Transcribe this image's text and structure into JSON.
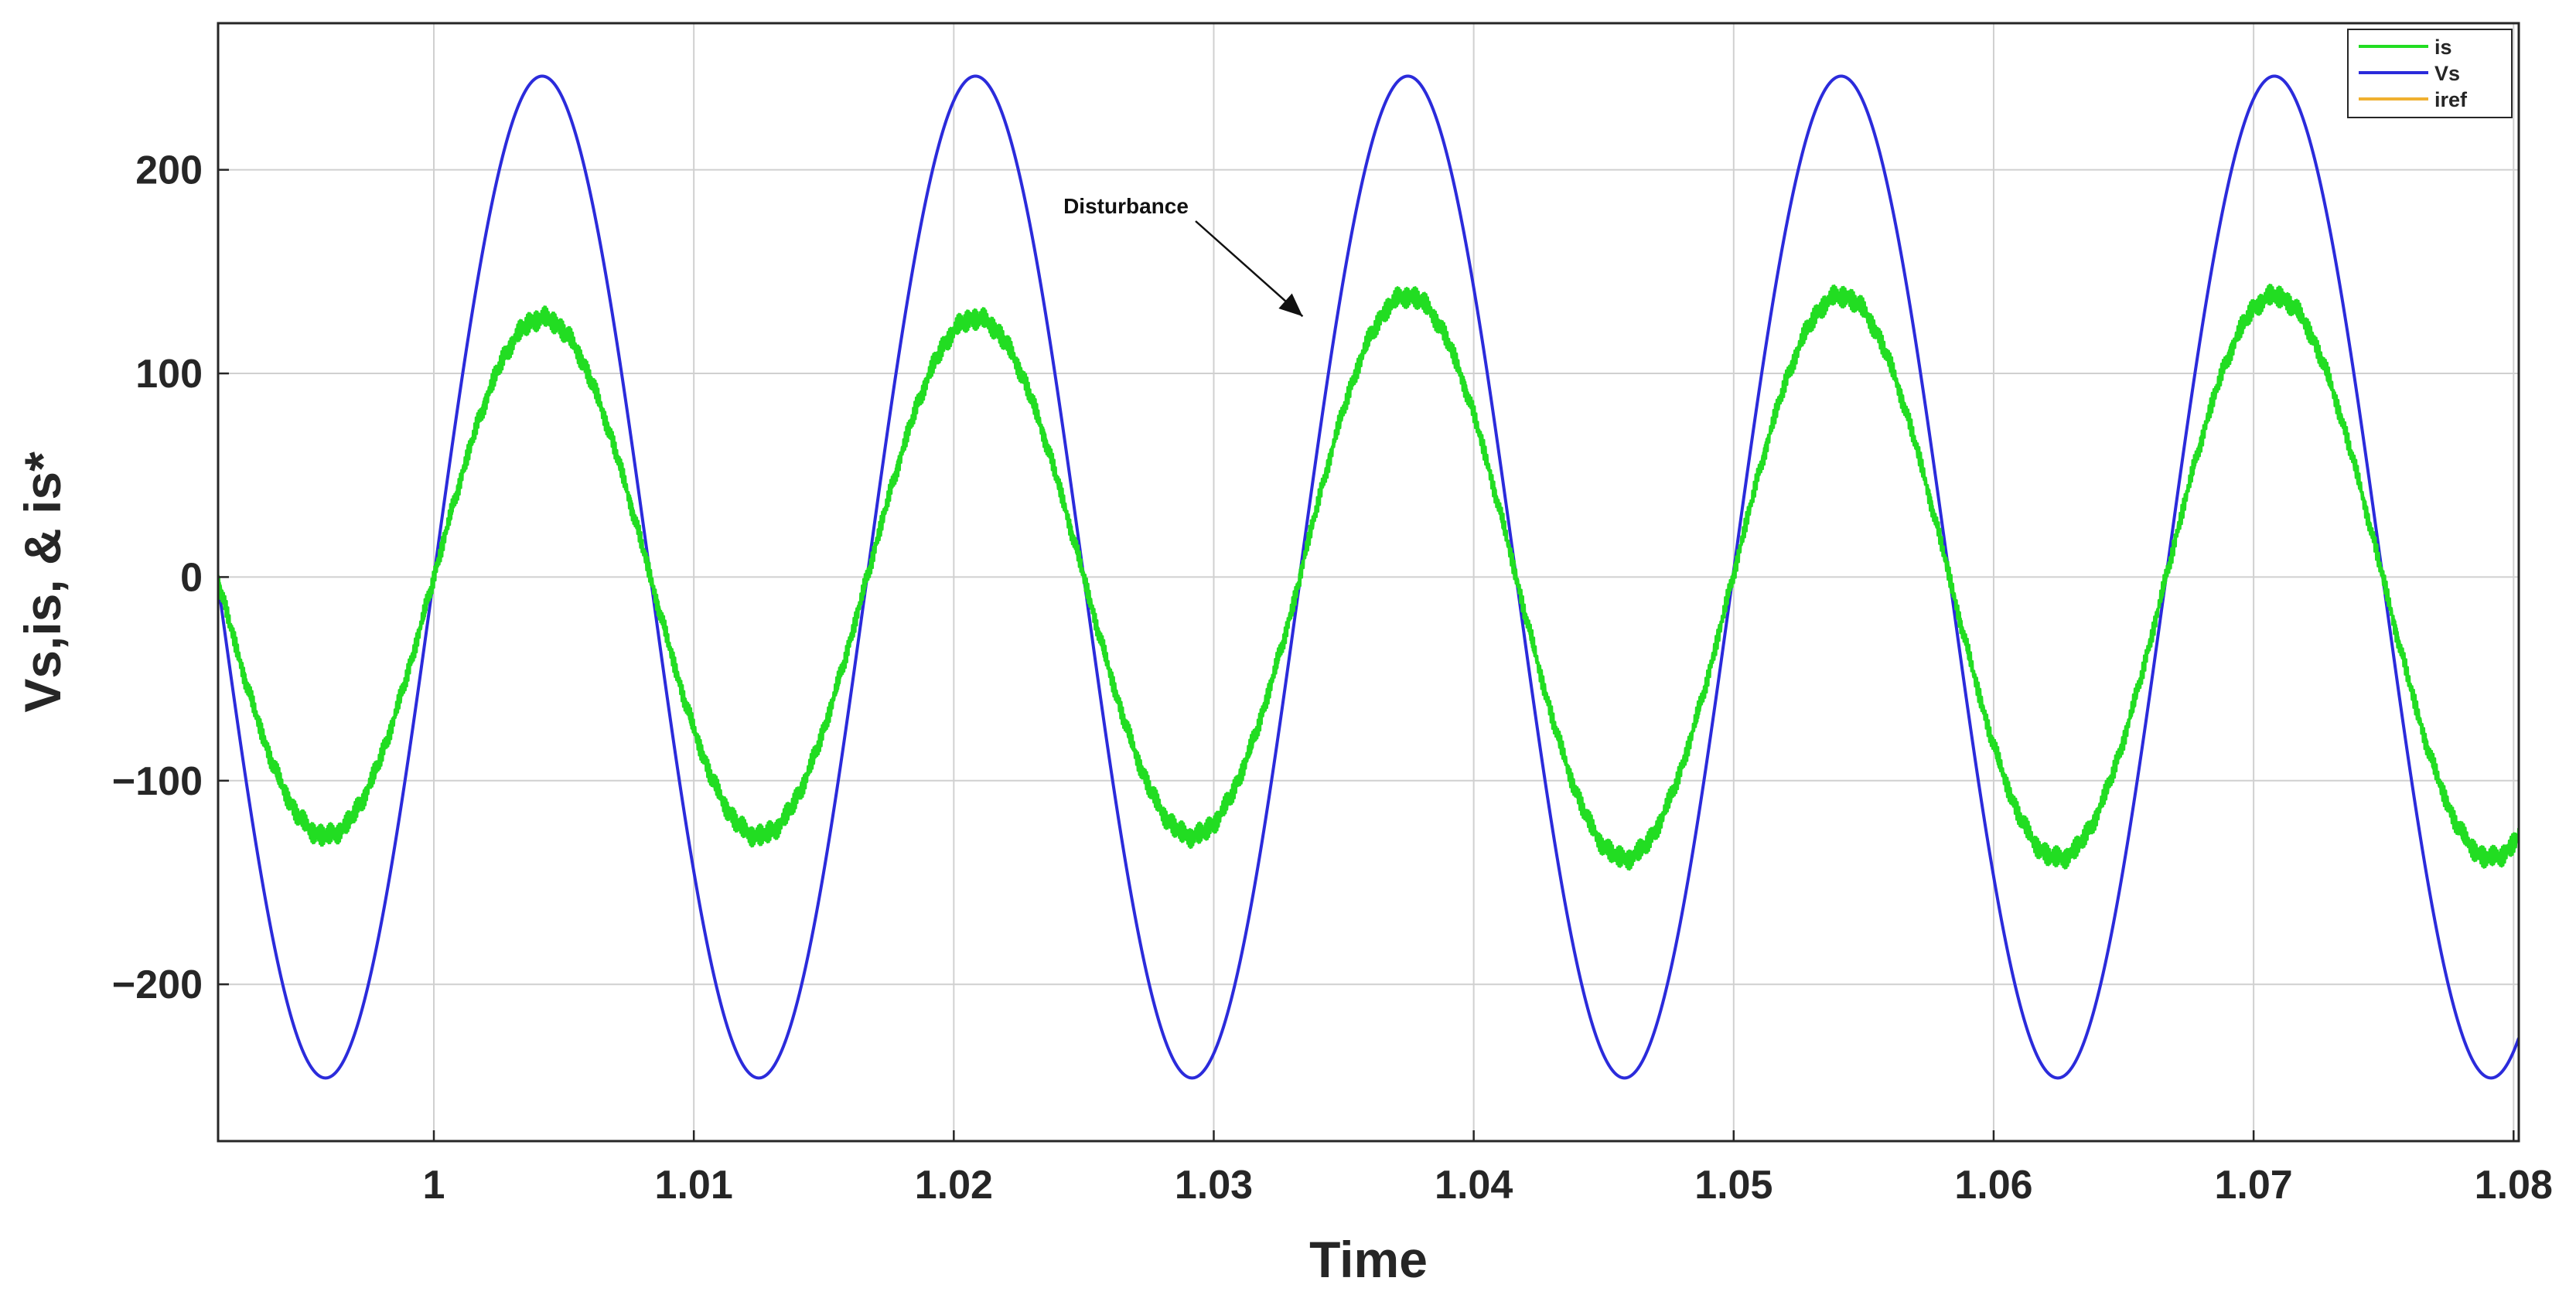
{
  "chart_data": {
    "type": "line",
    "title": "",
    "xlabel": "Time",
    "ylabel": "Vs,is, & is*",
    "xlim": [
      0.9917,
      1.0802
    ],
    "ylim": [
      -277,
      272
    ],
    "x_ticks": [
      1,
      1.01,
      1.02,
      1.03,
      1.04,
      1.05,
      1.06,
      1.07,
      1.08
    ],
    "x_tick_labels": [
      "1",
      "1.01",
      "1.02",
      "1.03",
      "1.04",
      "1.05",
      "1.06",
      "1.07",
      "1.08"
    ],
    "y_ticks": [
      -200,
      -100,
      0,
      100,
      200
    ],
    "y_tick_labels": [
      "−200",
      "−100",
      "0",
      "100",
      "200"
    ],
    "grid": true,
    "legend_position": "top-right",
    "frequency_hz": 60,
    "series": [
      {
        "name": "is",
        "color": "#22dd22",
        "waveform": "sine",
        "segments": [
          {
            "t_start": 0.9917,
            "t_end": 1.0333,
            "amplitude": 127,
            "phase_zero_time": 1.0
          },
          {
            "t_start": 1.0333,
            "t_end": 1.0802,
            "amplitude": 138,
            "phase_zero_time": 1.0333
          }
        ],
        "ripple": 6
      },
      {
        "name": "Vs",
        "color": "#2b2bdb",
        "waveform": "sine",
        "segments": [
          {
            "t_start": 0.9917,
            "t_end": 1.0333,
            "amplitude": 246,
            "phase_zero_time": 1.0
          },
          {
            "t_start": 1.0333,
            "t_end": 1.0802,
            "amplitude": 246,
            "phase_zero_time": 1.0333
          }
        ]
      },
      {
        "name": "iref",
        "color": "#f0b030",
        "waveform": "sine",
        "segments": [
          {
            "t_start": 0.9917,
            "t_end": 1.0333,
            "amplitude": 127,
            "phase_zero_time": 1.0
          },
          {
            "t_start": 1.0333,
            "t_end": 1.0802,
            "amplitude": 138,
            "phase_zero_time": 1.0333
          }
        ]
      }
    ],
    "annotations": [
      {
        "text": "Disturbance",
        "x": 1.0333,
        "y": 125
      }
    ]
  }
}
